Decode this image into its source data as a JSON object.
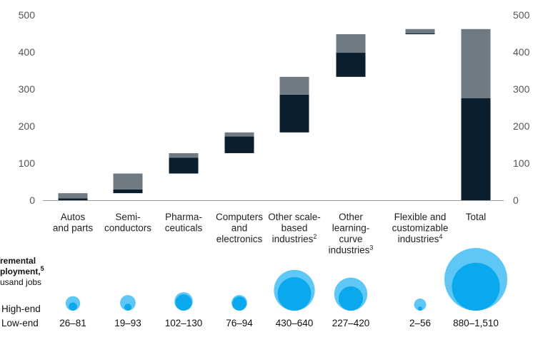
{
  "chart_data": {
    "type": "bar",
    "subtype": "floating-waterfall",
    "ylim": [
      0,
      500
    ],
    "y_ticks": [
      "0",
      "100",
      "200",
      "300",
      "400",
      "500"
    ],
    "grid": false,
    "colors": {
      "low": "#0b1e2d",
      "high": "#6f7a82",
      "bubble_high": "#5ec7f6",
      "bubble_low": "#0aa8ec"
    },
    "categories": [
      {
        "lines": [
          "Autos",
          "and parts"
        ],
        "sup": ""
      },
      {
        "lines": [
          "Semi-",
          "conductors"
        ],
        "sup": ""
      },
      {
        "lines": [
          "Pharma-",
          "ceuticals"
        ],
        "sup": ""
      },
      {
        "lines": [
          "Computers",
          "and",
          "electronics"
        ],
        "sup": ""
      },
      {
        "lines": [
          "Other scale-",
          "based",
          "industries"
        ],
        "sup": "2"
      },
      {
        "lines": [
          "Other",
          "learning-",
          "curve",
          "industries"
        ],
        "sup": "3"
      },
      {
        "lines": [
          "Flexible and",
          "customizable",
          "industries"
        ],
        "sup": "4"
      },
      {
        "lines": [
          "Total"
        ],
        "sup": ""
      }
    ],
    "bars": [
      {
        "base": 0,
        "low_top": 5,
        "high_top": 19
      },
      {
        "base": 19,
        "low_top": 29,
        "high_top": 72
      },
      {
        "base": 72,
        "low_top": 115,
        "high_top": 127
      },
      {
        "base": 127,
        "low_top": 172,
        "high_top": 183
      },
      {
        "base": 183,
        "low_top": 285,
        "high_top": 333
      },
      {
        "base": 333,
        "low_top": 398,
        "high_top": 448
      },
      {
        "base": 448,
        "low_top": 450,
        "high_top": 462
      },
      {
        "base": 0,
        "low_top": 275,
        "high_top": 462
      }
    ],
    "employment": {
      "title_lines": [
        "remental",
        "ployment,",
        "usand jobs"
      ],
      "title_sup": "5",
      "row_labels": [
        "High-end",
        "Low-end"
      ],
      "ranges": [
        "26–81",
        "19–93",
        "102–130",
        "76–94",
        "430–640",
        "227–420",
        "2–56",
        "880–1,510"
      ],
      "low": [
        26,
        19,
        102,
        76,
        430,
        227,
        2,
        880
      ],
      "high": [
        81,
        93,
        130,
        94,
        640,
        420,
        56,
        1510
      ]
    }
  }
}
